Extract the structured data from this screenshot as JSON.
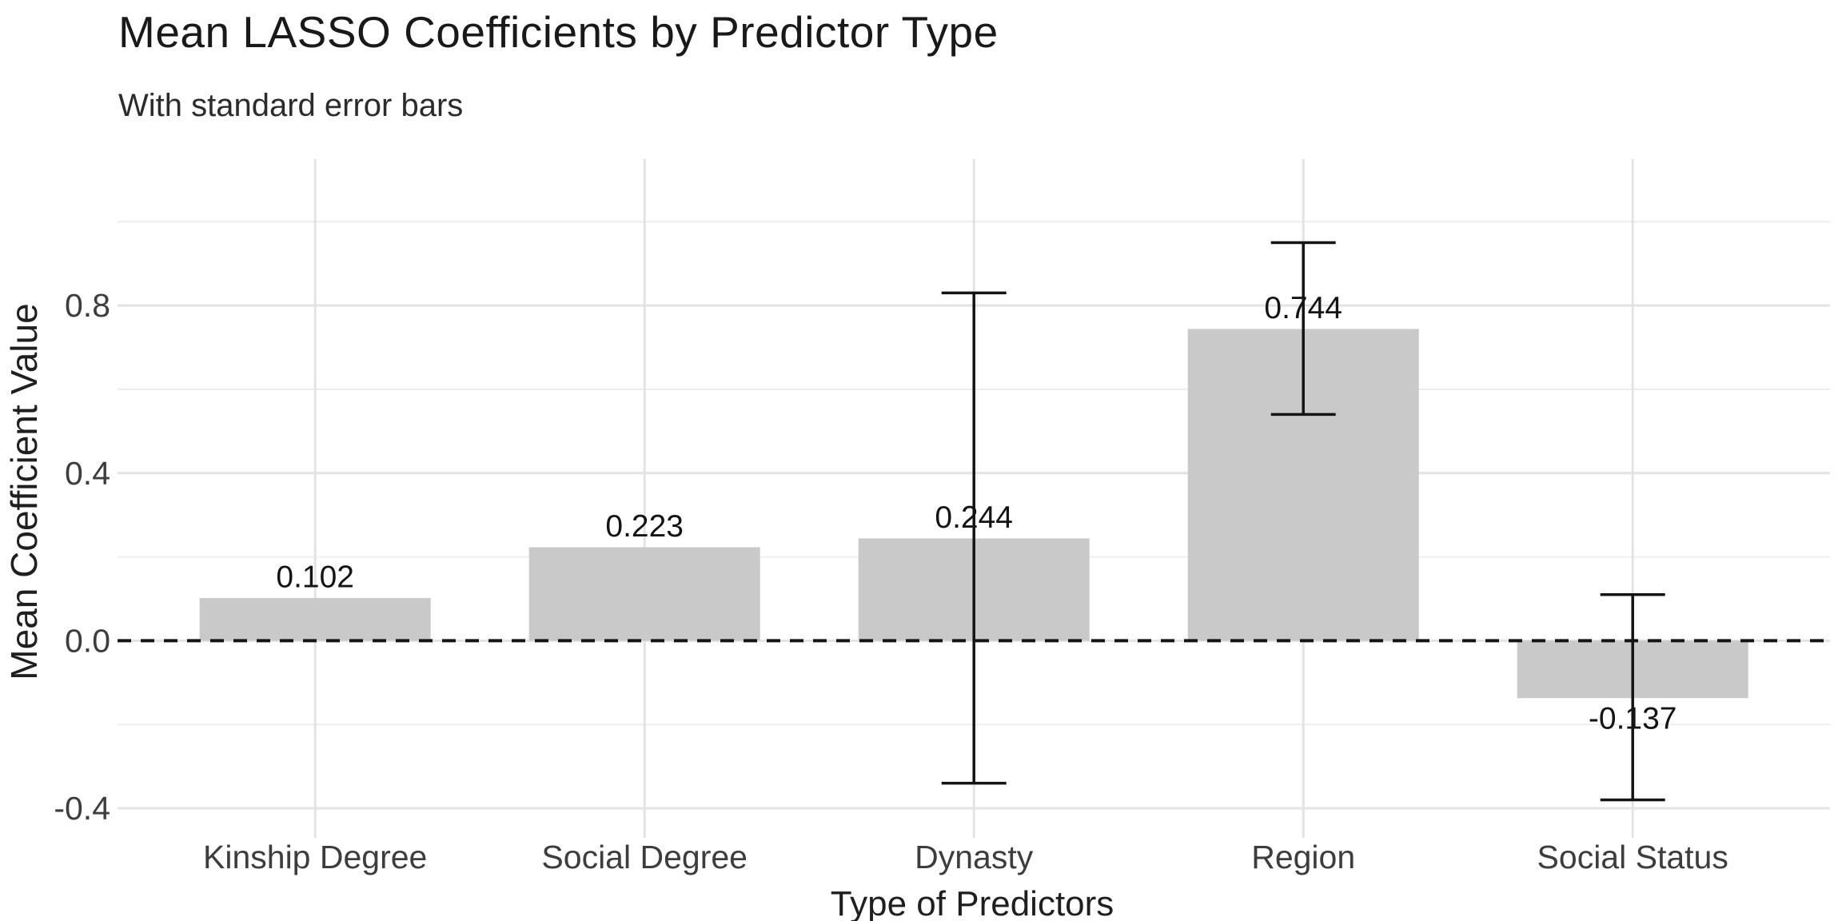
{
  "chart_data": {
    "type": "bar",
    "title": "Mean LASSO Coefficients by Predictor Type",
    "subtitle": "With standard error bars",
    "xlabel": "Type of Predictors",
    "ylabel": "Mean Coefficient Value",
    "categories": [
      "Kinship Degree",
      "Social Degree",
      "Dynasty",
      "Region",
      "Social Status"
    ],
    "values": [
      0.102,
      0.223,
      0.244,
      0.744,
      -0.137
    ],
    "bar_labels": [
      "0.102",
      "0.223",
      "0.244",
      "0.744",
      "-0.137"
    ],
    "error_bars": [
      {
        "category": "Kinship Degree",
        "upper": null,
        "lower": null
      },
      {
        "category": "Social Degree",
        "upper": null,
        "lower": null
      },
      {
        "category": "Dynasty",
        "upper": 0.83,
        "lower": -0.34
      },
      {
        "category": "Region",
        "upper": 0.95,
        "lower": 0.54
      },
      {
        "category": "Social Status",
        "upper": 0.11,
        "lower": -0.38
      }
    ],
    "y_axis": {
      "tick_labels": [
        "-0.4",
        "0.0",
        "0.4",
        "0.8"
      ],
      "ticks": [
        -0.4,
        0.0,
        0.4,
        0.8
      ],
      "minor_ticks": [
        -0.2,
        0.2,
        0.6,
        1.0
      ],
      "range": [
        -0.47,
        1.15
      ]
    },
    "zero_reference_line": "dashed",
    "grid": "on",
    "legend": "none",
    "colors": {
      "background": "#ffffff",
      "bar_fill": "#c9c9c9",
      "error_bar": "#141414",
      "zero_line": "#141414",
      "grid_major": "#e3e3e3",
      "grid_minor": "#ededed",
      "title_text": "#191919",
      "subtitle_text": "#2b2b2b",
      "axis_tick_text": "#3d3d3d",
      "axis_title_text": "#1f1f1f",
      "value_label_text": "#141414"
    }
  }
}
